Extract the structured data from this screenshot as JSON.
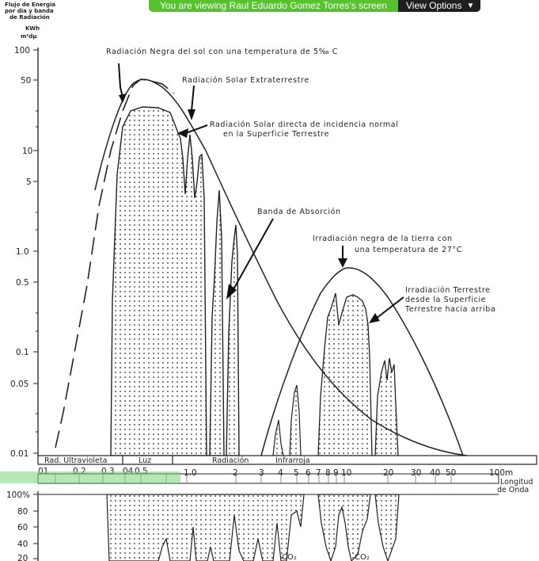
{
  "share_bar": {
    "message": "You are viewing Raul Eduardo Gomez Torres's screen",
    "view_options": "View Options",
    "bar_color": "#56c22e"
  },
  "ylabel": [
    "Flujo de Energia",
    "por dia y banda",
    "de Radiación",
    "KWh",
    "m²dμ"
  ],
  "annotations": {
    "black_body_sun": "Radiación Negra del sol con una temperatura de 5‰ C",
    "extraterrestrial": "Radiación Solar Extraterrestre",
    "direct_1": "Radiación Solar directa de incidencia normal",
    "direct_2": "en la Superficie Terrestre",
    "absorption": "Banda de Absorción",
    "earth_black_1": "Irradiación negra de la tierra con",
    "earth_black_2": "una temperatura de 27°C",
    "terrestrial_1": "Irradiación Terrestre",
    "terrestrial_2": "desde la Superficie",
    "terrestrial_3": "Terrestre hacia arriba",
    "co2_a": "CO₂",
    "co2_b": "CO₂"
  },
  "bands": {
    "uv": "Rad. Ultravioleta",
    "light": "Luz",
    "infrared_1": "Radiación",
    "infrared_2": "Infrarroja"
  },
  "x_axis": {
    "ticks": [
      "01",
      "0.2",
      "0.3",
      "04",
      "0.5",
      "1.0",
      "2",
      "3",
      "4",
      "5",
      "6",
      "7",
      "8",
      "9",
      "10",
      "20",
      "30",
      "40",
      "50",
      "100m"
    ],
    "label_1": "Longitud",
    "label_2": "de Onda"
  },
  "y_axis": {
    "ticks": [
      "100",
      "50",
      "10",
      "5",
      "1.0",
      "0.5",
      "0.1",
      "0.05",
      "0.01"
    ]
  },
  "lower_axis": {
    "ticks": [
      "100%",
      "80",
      "60",
      "40",
      "20"
    ]
  }
}
